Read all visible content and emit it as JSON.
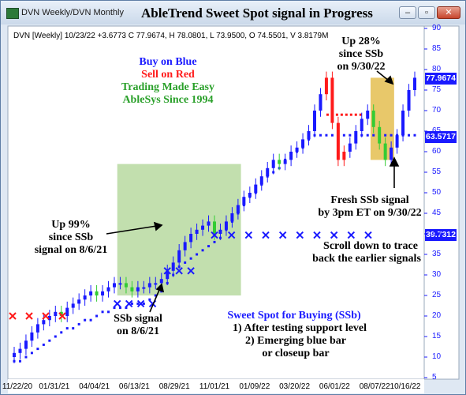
{
  "window": {
    "tab_title": "DVN Weekly/DVN Monthly",
    "headline": "AbleTrend Sweet Spot signal in Progress",
    "minimize_label": "–",
    "maximize_label": "▫",
    "close_label": "✕"
  },
  "info_line": "DVN [Weekly] 10/23/22 +3.6773 C 77.9674, H 78.0801, L 73.9500, O 74.5501, V 3.8179M",
  "legend_text": {
    "buy": "Buy on Blue",
    "sell": "Sell on Red",
    "tagline1": "Trading Made Easy",
    "tagline2": "AbleSys Since 1994"
  },
  "annotations": {
    "up99": [
      "Up 99%",
      "since SSb",
      "signal on 8/6/21"
    ],
    "ssb_signal": [
      "SSb signal",
      "on 8/6/21"
    ],
    "up28": [
      "Up 28%",
      "since SSb",
      "on 9/30/22"
    ],
    "fresh": [
      "Fresh SSb signal",
      "by 3pm ET on 9/30/22"
    ],
    "scroll": [
      "Scroll down to trace",
      "back the earlier signals"
    ],
    "sweet_spot": [
      "Sweet Spot for Buying (SSb)",
      "1) After testing support level",
      "2) Emerging blue bar",
      "or closeup bar"
    ]
  },
  "price_tags": [
    {
      "value": "77.9674",
      "color": "#1a1aff"
    },
    {
      "value": "63.5717",
      "color": "#1a1aff"
    },
    {
      "value": "39.7312",
      "color": "#1a1aff"
    }
  ],
  "colors": {
    "blue": "#1a1aff",
    "red": "#ff1a1a",
    "green": "#33cc33",
    "sweet_spot_zone": "#b7d9a0",
    "recent_zone": "#e6c25a"
  },
  "chart_data": {
    "type": "bar",
    "title": "AbleTrend Sweet Spot signal in Progress",
    "symbol": "DVN",
    "timeframe": "Weekly",
    "ylim": [
      5,
      90
    ],
    "yticks": [
      5,
      10,
      15,
      20,
      25,
      30,
      35,
      40,
      45,
      50,
      55,
      60,
      65,
      70,
      75,
      80,
      85,
      90
    ],
    "xticks": [
      "11/22/20",
      "01/31/21",
      "04/04/21",
      "06/13/21",
      "08/29/21",
      "11/01/21",
      "01/09/22",
      "03/20/22",
      "06/01/22",
      "08/07/22",
      "10/16/22"
    ],
    "grid": false,
    "series": [
      {
        "name": "",
        "values": [
          11,
          12,
          14,
          16,
          18,
          19,
          20,
          21,
          20,
          22,
          23,
          24,
          25,
          26,
          25,
          26,
          27,
          28,
          28,
          27,
          26,
          27,
          27,
          28,
          28,
          29,
          31,
          33,
          36,
          38,
          40,
          41,
          42,
          43,
          40,
          41,
          43,
          45,
          47,
          49,
          50,
          52,
          54,
          56,
          58,
          57,
          58,
          60,
          61,
          63,
          65,
          70,
          74,
          78,
          67,
          58,
          60,
          62,
          65,
          68,
          70,
          66,
          62,
          58,
          61,
          64,
          70,
          75,
          78
        ]
      }
    ],
    "support_stops": [
      9,
      9,
      10,
      11,
      12,
      13,
      14,
      15,
      16,
      17,
      17,
      18,
      19,
      19,
      20,
      21,
      21,
      22,
      22,
      22,
      23,
      23,
      23,
      24,
      25,
      26,
      28,
      30,
      32,
      33,
      34,
      35,
      36,
      37,
      38,
      39,
      41,
      43,
      45,
      47,
      49,
      50,
      52,
      54,
      55,
      56,
      58,
      59,
      60,
      61,
      63,
      64,
      64,
      64,
      64,
      64,
      64,
      64,
      64,
      64,
      64,
      64,
      64,
      64,
      64,
      64,
      64,
      64,
      64
    ],
    "resistance_stops": [
      20,
      20,
      20,
      20,
      69,
      69,
      69,
      69,
      69,
      69,
      69,
      69
    ],
    "sweet_spot_x_markers": [
      23,
      23,
      23,
      23,
      31,
      31,
      31,
      39.7,
      39.7,
      39.7,
      39.7,
      39.7,
      39.7,
      39.7,
      39.7,
      39.7,
      39.7
    ],
    "red_x_markers": [
      20,
      20,
      20,
      20
    ]
  }
}
